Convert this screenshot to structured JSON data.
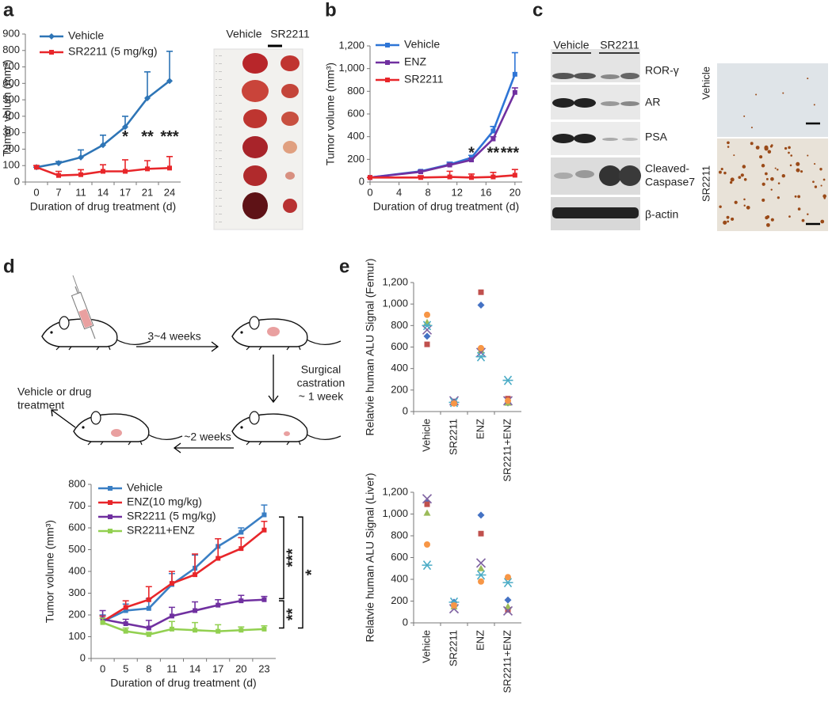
{
  "panel_labels": [
    "a",
    "b",
    "c",
    "d",
    "e"
  ],
  "photo": {
    "labels": [
      "Vehicle",
      "SR2211"
    ]
  },
  "blot": {
    "groups": [
      "Vehicle",
      "SR2211"
    ],
    "bands": [
      [
        "ROR-γ"
      ],
      [
        "AR"
      ],
      [
        "PSA"
      ],
      [
        "Cleaved-",
        "Caspase7"
      ],
      [
        "β-actin"
      ]
    ]
  },
  "ihc": {
    "labels": [
      "Vehicle",
      "SR2211"
    ]
  },
  "diagram": {
    "steps": [
      [
        "3~4 weeks"
      ],
      [
        "Surgical",
        "castration",
        "~ 1 week"
      ],
      [
        "~2 weeks"
      ]
    ],
    "treatment": [
      "Vehicle or drug",
      "treatment"
    ]
  },
  "chart_data": [
    {
      "type": "line",
      "x_label": "Duration of drug treatment (d)",
      "y_label": "Tumor volum (mm³)",
      "categories": [
        "0",
        "7",
        "11",
        "14",
        "17",
        "21",
        "24"
      ],
      "ylim": [
        0,
        900
      ],
      "yticks": [
        0,
        100,
        200,
        300,
        400,
        500,
        600,
        700,
        800,
        900
      ],
      "legend": "upper left",
      "series": [
        {
          "name": "Vehicle",
          "color": "#2e75b6",
          "marker": "diamond",
          "values": [
            90,
            115,
            150,
            225,
            335,
            510,
            615
          ],
          "errors": [
            0,
            10,
            45,
            60,
            65,
            160,
            180
          ]
        },
        {
          "name": "SR2211 (5 mg/kg)",
          "color": "#e8262a",
          "marker": "square",
          "values": [
            90,
            40,
            45,
            65,
            65,
            80,
            85
          ],
          "errors": [
            10,
            25,
            30,
            40,
            70,
            50,
            70
          ]
        }
      ],
      "annotations": [
        {
          "text": "*",
          "x": "17",
          "y": 270
        },
        {
          "text": "**",
          "x": "21",
          "y": 270
        },
        {
          "text": "***",
          "x": "24",
          "y": 270
        }
      ]
    },
    {
      "type": "line",
      "x_label": "Duration of drug treatment (d)",
      "y_label": "Tumor volume (mm³)",
      "x": [
        0,
        7,
        11,
        14,
        17,
        20
      ],
      "xlim": [
        0,
        21
      ],
      "xticks": [
        0,
        4,
        8,
        12,
        16,
        20
      ],
      "ylim": [
        0,
        1200
      ],
      "yticks": [
        0,
        200,
        400,
        600,
        800,
        {
          "value": 1000,
          "label": "1,000"
        },
        {
          "value": 1200,
          "label": "1,200"
        }
      ],
      "legend": "upper left",
      "series": [
        {
          "name": "Vehicle",
          "color": "#2e75d6",
          "marker": "square",
          "values": [
            40,
            95,
            155,
            215,
            450,
            950
          ],
          "errors": [
            0,
            10,
            20,
            20,
            40,
            190
          ]
        },
        {
          "name": "ENZ",
          "color": "#7030a0",
          "marker": "square",
          "values": [
            40,
            90,
            150,
            195,
            380,
            790
          ],
          "errors": [
            0,
            5,
            10,
            15,
            20,
            40
          ]
        },
        {
          "name": "SR2211",
          "color": "#e8262a",
          "marker": "square",
          "values": [
            40,
            40,
            45,
            40,
            45,
            60
          ],
          "errors": [
            0,
            15,
            50,
            30,
            40,
            50
          ]
        }
      ],
      "annotations": [
        {
          "text": "*",
          "x": 14,
          "y": 250
        },
        {
          "text": "**",
          "x": 17,
          "y": 250
        },
        {
          "text": "***",
          "x": 19.3,
          "y": 250
        }
      ]
    },
    {
      "type": "line",
      "x_label": "Duration of drug treatment (d)",
      "y_label": "Tumor volume (mm³)",
      "categories": [
        "0",
        "5",
        "8",
        "11",
        "14",
        "17",
        "20",
        "23"
      ],
      "ylim": [
        0,
        800
      ],
      "yticks": [
        0,
        100,
        200,
        300,
        400,
        500,
        600,
        700,
        800
      ],
      "legend": "upper left",
      "series": [
        {
          "name": "Vehicle",
          "color": "#3a7fc4",
          "marker": "square",
          "values": [
            170,
            220,
            230,
            340,
            415,
            515,
            580,
            660
          ],
          "errors": [
            30,
            30,
            45,
            50,
            60,
            35,
            20,
            45
          ]
        },
        {
          "name": "ENZ(10 mg/kg)",
          "color": "#e8262a",
          "marker": "square",
          "values": [
            170,
            235,
            270,
            345,
            385,
            460,
            505,
            590
          ],
          "errors": [
            25,
            30,
            60,
            55,
            95,
            90,
            50,
            40
          ]
        },
        {
          "name": "SR2211 (5 mg/kg)",
          "color": "#7030a0",
          "marker": "square",
          "values": [
            180,
            160,
            140,
            195,
            220,
            245,
            265,
            270
          ],
          "errors": [
            40,
            20,
            35,
            40,
            40,
            25,
            25,
            15
          ]
        },
        {
          "name": "SR2211+ENZ",
          "color": "#92d050",
          "marker": "square",
          "values": [
            165,
            125,
            110,
            135,
            130,
            125,
            130,
            135
          ],
          "errors": [
            20,
            15,
            10,
            35,
            35,
            30,
            15,
            15
          ]
        }
      ],
      "annotations": [
        {
          "text": "***",
          "y_range": [
            650,
            275
          ]
        },
        {
          "text": "**",
          "y_range": [
            265,
            140
          ]
        },
        {
          "text": "*",
          "y_range": [
            650,
            140
          ]
        }
      ]
    },
    {
      "type": "scatter",
      "y_label": "Relatvie human ALU Signal (Femur)",
      "categories": [
        "Vehicle",
        "SR2211",
        "ENZ",
        "SR2211+ENZ"
      ],
      "ylim": [
        0,
        1200
      ],
      "yticks": [
        0,
        200,
        400,
        600,
        800,
        {
          "value": 1000,
          "label": "1,000"
        },
        {
          "value": 1200,
          "label": "1,200"
        }
      ],
      "series": [
        {
          "color": "#4472c4",
          "marker": "diamond",
          "values": [
            700,
            90,
            990,
            80
          ]
        },
        {
          "color": "#c0504d",
          "marker": "square",
          "values": [
            625,
            90,
            1110,
            120
          ]
        },
        {
          "color": "#9bbb59",
          "marker": "triangle",
          "values": [
            830,
            80,
            570,
            80
          ]
        },
        {
          "color": "#8064a2",
          "marker": "x",
          "values": [
            760,
            100,
            550,
            100
          ]
        },
        {
          "color": "#4bacc6",
          "marker": "asterisk",
          "values": [
            800,
            85,
            510,
            290
          ]
        },
        {
          "color": "#f79646",
          "marker": "circle",
          "values": [
            900,
            75,
            590,
            100
          ]
        }
      ]
    },
    {
      "type": "scatter",
      "y_label": "Relatvie human ALU Signal (Liver)",
      "categories": [
        "Vehicle",
        "SR2211",
        "ENZ",
        "SR2211+ENZ"
      ],
      "ylim": [
        0,
        1200
      ],
      "yticks": [
        0,
        200,
        400,
        600,
        800,
        {
          "value": 1000,
          "label": "1,000"
        },
        {
          "value": 1200,
          "label": "1,200"
        }
      ],
      "series": [
        {
          "color": "#4472c4",
          "marker": "diamond",
          "values": [
            1110,
            190,
            990,
            210
          ]
        },
        {
          "color": "#c0504d",
          "marker": "square",
          "values": [
            1090,
            160,
            820,
            120
          ]
        },
        {
          "color": "#9bbb59",
          "marker": "triangle",
          "values": [
            1010,
            150,
            500,
            150
          ]
        },
        {
          "color": "#8064a2",
          "marker": "x",
          "values": [
            1140,
            130,
            550,
            110
          ]
        },
        {
          "color": "#4bacc6",
          "marker": "asterisk",
          "values": [
            530,
            190,
            440,
            370
          ]
        },
        {
          "color": "#f79646",
          "marker": "circle",
          "values": [
            720,
            160,
            380,
            420
          ]
        }
      ]
    }
  ]
}
